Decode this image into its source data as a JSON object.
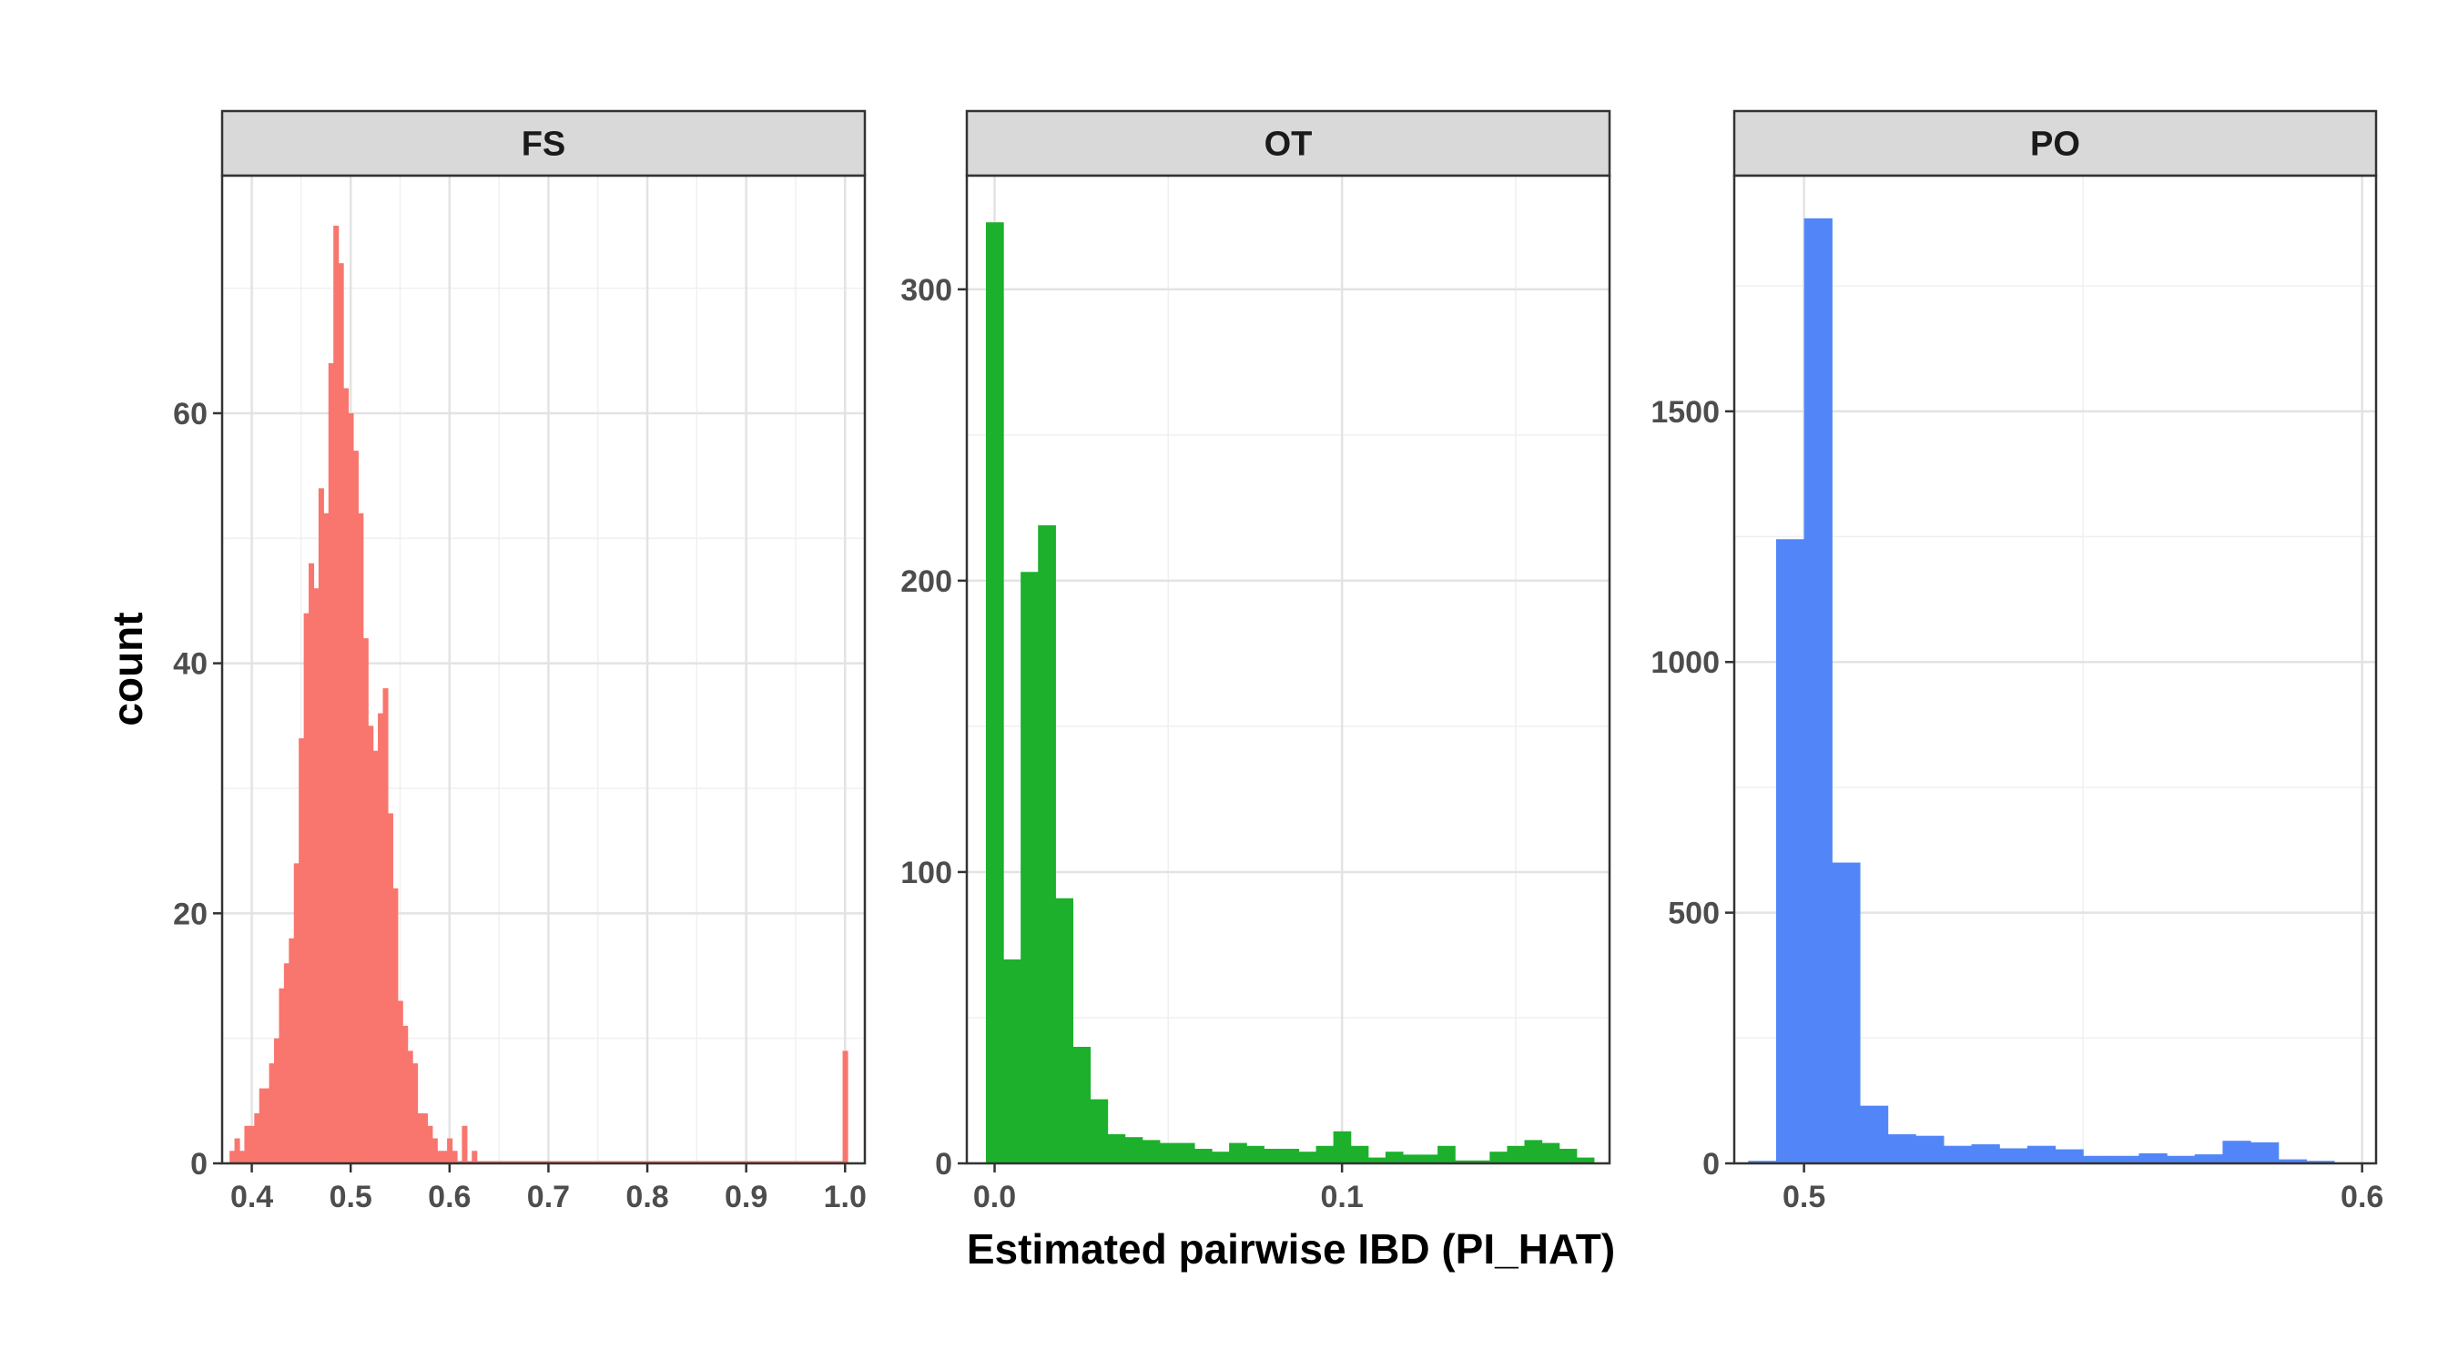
{
  "chart_data": {
    "type": "bar",
    "xlabel": "Estimated pairwise IBD (PI_HAT)",
    "ylabel": "count",
    "grid": true,
    "legend": "none",
    "panels": [
      {
        "name": "FS",
        "color": "#F8766D",
        "xlim": [
          0.37,
          1.02
        ],
        "ylim": [
          0,
          79
        ],
        "xticks": [
          0.4,
          0.5,
          0.6,
          0.7,
          0.8,
          0.9,
          1.0
        ],
        "xtick_labels": [
          "0.4",
          "0.5",
          "0.6",
          "0.7",
          "0.8",
          "0.9",
          "1.0"
        ],
        "yticks": [
          0,
          20,
          40,
          60
        ],
        "ytick_labels": [
          "0",
          "20",
          "40",
          "60"
        ],
        "bin_width": 0.005,
        "bins": [
          [
            0.38,
            1
          ],
          [
            0.385,
            2
          ],
          [
            0.39,
            1
          ],
          [
            0.395,
            3
          ],
          [
            0.4,
            3
          ],
          [
            0.405,
            4
          ],
          [
            0.41,
            6
          ],
          [
            0.415,
            6
          ],
          [
            0.42,
            8
          ],
          [
            0.425,
            10
          ],
          [
            0.43,
            14
          ],
          [
            0.435,
            16
          ],
          [
            0.44,
            18
          ],
          [
            0.445,
            24
          ],
          [
            0.45,
            34
          ],
          [
            0.455,
            44
          ],
          [
            0.46,
            48
          ],
          [
            0.465,
            46
          ],
          [
            0.47,
            54
          ],
          [
            0.475,
            52
          ],
          [
            0.48,
            64
          ],
          [
            0.485,
            75
          ],
          [
            0.49,
            72
          ],
          [
            0.495,
            62
          ],
          [
            0.5,
            60
          ],
          [
            0.505,
            57
          ],
          [
            0.51,
            52
          ],
          [
            0.515,
            42
          ],
          [
            0.52,
            35
          ],
          [
            0.525,
            33
          ],
          [
            0.53,
            36
          ],
          [
            0.535,
            38
          ],
          [
            0.54,
            28
          ],
          [
            0.545,
            22
          ],
          [
            0.55,
            13
          ],
          [
            0.555,
            11
          ],
          [
            0.56,
            9
          ],
          [
            0.565,
            8
          ],
          [
            0.57,
            4
          ],
          [
            0.575,
            4
          ],
          [
            0.58,
            3
          ],
          [
            0.585,
            2
          ],
          [
            0.59,
            1
          ],
          [
            0.595,
            1
          ],
          [
            0.6,
            2
          ],
          [
            0.605,
            1
          ],
          [
            0.61,
            0
          ],
          [
            0.615,
            3
          ],
          [
            0.62,
            0
          ],
          [
            0.625,
            1
          ],
          [
            0.63,
            0
          ],
          [
            0.635,
            0
          ],
          [
            0.64,
            0
          ],
          [
            0.645,
            0
          ],
          [
            0.65,
            0
          ],
          [
            0.655,
            0
          ],
          [
            0.66,
            0
          ],
          [
            0.665,
            0
          ],
          [
            0.67,
            0
          ],
          [
            0.675,
            0
          ],
          [
            0.68,
            0
          ],
          [
            0.685,
            0
          ],
          [
            0.69,
            0
          ],
          [
            0.695,
            0
          ],
          [
            0.7,
            0
          ],
          [
            0.705,
            0
          ],
          [
            0.71,
            0
          ],
          [
            0.715,
            0
          ],
          [
            0.72,
            0
          ],
          [
            0.725,
            0
          ],
          [
            0.73,
            0
          ],
          [
            0.735,
            0
          ],
          [
            0.74,
            0
          ],
          [
            0.745,
            0
          ],
          [
            0.75,
            0
          ],
          [
            0.755,
            0
          ],
          [
            0.76,
            0
          ],
          [
            0.765,
            0
          ],
          [
            0.77,
            0
          ],
          [
            0.775,
            0
          ],
          [
            0.78,
            0
          ],
          [
            0.785,
            0
          ],
          [
            0.79,
            0
          ],
          [
            0.795,
            0
          ],
          [
            0.8,
            0
          ],
          [
            0.805,
            0
          ],
          [
            0.81,
            0
          ],
          [
            0.815,
            0
          ],
          [
            0.82,
            0
          ],
          [
            0.825,
            0
          ],
          [
            0.83,
            0
          ],
          [
            0.835,
            0
          ],
          [
            0.84,
            0
          ],
          [
            0.845,
            0
          ],
          [
            0.85,
            0
          ],
          [
            0.855,
            0
          ],
          [
            0.86,
            0
          ],
          [
            0.865,
            0
          ],
          [
            0.87,
            0
          ],
          [
            0.875,
            0
          ],
          [
            0.88,
            0
          ],
          [
            0.885,
            0
          ],
          [
            0.89,
            0
          ],
          [
            0.895,
            0
          ],
          [
            0.9,
            0
          ],
          [
            0.905,
            0
          ],
          [
            0.91,
            0
          ],
          [
            0.915,
            0
          ],
          [
            0.92,
            0
          ],
          [
            0.925,
            0
          ],
          [
            0.93,
            0
          ],
          [
            0.935,
            0
          ],
          [
            0.94,
            0
          ],
          [
            0.945,
            0
          ],
          [
            0.95,
            0
          ],
          [
            0.955,
            0
          ],
          [
            0.96,
            0
          ],
          [
            0.965,
            0
          ],
          [
            0.97,
            0
          ],
          [
            0.975,
            0
          ],
          [
            0.98,
            0
          ],
          [
            0.985,
            0
          ],
          [
            0.99,
            0
          ],
          [
            0.995,
            0
          ],
          [
            1.0,
            9
          ]
        ]
      },
      {
        "name": "OT",
        "color": "#1CB02C",
        "xlim": [
          -0.008,
          0.177
        ],
        "ylim": [
          0,
          339
        ],
        "xticks": [
          0.0,
          0.1
        ],
        "xtick_labels": [
          "0.0",
          "0.1"
        ],
        "yticks": [
          0,
          100,
          200,
          300
        ],
        "ytick_labels": [
          "0",
          "100",
          "200",
          "300"
        ],
        "bin_width": 0.005,
        "bins": [
          [
            0.0,
            323
          ],
          [
            0.005,
            70
          ],
          [
            0.01,
            203
          ],
          [
            0.015,
            219
          ],
          [
            0.02,
            91
          ],
          [
            0.025,
            40
          ],
          [
            0.03,
            22
          ],
          [
            0.035,
            10
          ],
          [
            0.04,
            9
          ],
          [
            0.045,
            8
          ],
          [
            0.05,
            7
          ],
          [
            0.055,
            7
          ],
          [
            0.06,
            5
          ],
          [
            0.065,
            4
          ],
          [
            0.07,
            7
          ],
          [
            0.075,
            6
          ],
          [
            0.08,
            5
          ],
          [
            0.085,
            5
          ],
          [
            0.09,
            4
          ],
          [
            0.095,
            6
          ],
          [
            0.1,
            11
          ],
          [
            0.105,
            6
          ],
          [
            0.11,
            2
          ],
          [
            0.115,
            4
          ],
          [
            0.12,
            3
          ],
          [
            0.125,
            3
          ],
          [
            0.13,
            6
          ],
          [
            0.135,
            1
          ],
          [
            0.14,
            1
          ],
          [
            0.145,
            4
          ],
          [
            0.15,
            6
          ],
          [
            0.155,
            8
          ],
          [
            0.16,
            7
          ],
          [
            0.165,
            5
          ],
          [
            0.17,
            2
          ]
        ]
      },
      {
        "name": "PO",
        "color": "#5286F8",
        "xlim": [
          0.4875,
          0.6025
        ],
        "ylim": [
          0,
          1970
        ],
        "xticks": [
          0.5,
          0.6
        ],
        "xtick_labels": [
          "0.5",
          "0.6"
        ],
        "yticks": [
          0,
          500,
          1000,
          1500
        ],
        "ytick_labels": [
          "0",
          "500",
          "1000",
          "1500"
        ],
        "bin_width": 0.005,
        "bins": [
          [
            0.4925,
            5
          ],
          [
            0.4975,
            1245
          ],
          [
            0.5025,
            1885
          ],
          [
            0.5075,
            600
          ],
          [
            0.5125,
            115
          ],
          [
            0.5175,
            58
          ],
          [
            0.5225,
            55
          ],
          [
            0.5275,
            35
          ],
          [
            0.5325,
            38
          ],
          [
            0.5375,
            30
          ],
          [
            0.5425,
            35
          ],
          [
            0.5475,
            28
          ],
          [
            0.5525,
            15
          ],
          [
            0.5575,
            15
          ],
          [
            0.5625,
            20
          ],
          [
            0.5675,
            15
          ],
          [
            0.5725,
            18
          ],
          [
            0.5775,
            45
          ],
          [
            0.5825,
            42
          ],
          [
            0.5875,
            8
          ],
          [
            0.5925,
            5
          ]
        ]
      }
    ]
  }
}
